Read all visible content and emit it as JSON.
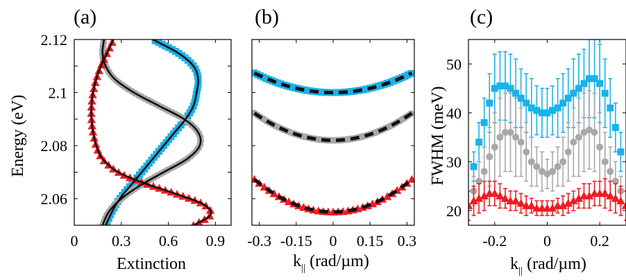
{
  "colors": {
    "cyan": "#1ab2e8",
    "gray": "#a8a8a8",
    "red": "#ee1c24",
    "fit": "#111111"
  },
  "chart_data": [
    {
      "panel": "(a)",
      "type": "line",
      "xlabel": "Extinction",
      "ylabel": "Energy (eV)",
      "xlim": [
        0,
        1.0
      ],
      "ylim": [
        2.05,
        2.12
      ],
      "xticks": [
        "0",
        "0.3",
        "0.6",
        "0.9"
      ],
      "yticks": [
        "2.06",
        "2.08",
        "2.1",
        "2.12"
      ],
      "series": [
        {
          "color": "cyan",
          "marker": "square",
          "points": [
            [
              0.2,
              2.05
            ],
            [
              0.24,
              2.055
            ],
            [
              0.29,
              2.06
            ],
            [
              0.36,
              2.065
            ],
            [
              0.43,
              2.07
            ],
            [
              0.5,
              2.075
            ],
            [
              0.57,
              2.08
            ],
            [
              0.64,
              2.085
            ],
            [
              0.71,
              2.09
            ],
            [
              0.76,
              2.095
            ],
            [
              0.78,
              2.1
            ],
            [
              0.79,
              2.105
            ],
            [
              0.76,
              2.11
            ],
            [
              0.66,
              2.115
            ],
            [
              0.5,
              2.12
            ]
          ]
        },
        {
          "color": "gray",
          "marker": "circle",
          "points": [
            [
              0.18,
              2.05
            ],
            [
              0.22,
              2.055
            ],
            [
              0.3,
              2.06
            ],
            [
              0.42,
              2.065
            ],
            [
              0.57,
              2.07
            ],
            [
              0.72,
              2.075
            ],
            [
              0.8,
              2.08
            ],
            [
              0.79,
              2.085
            ],
            [
              0.7,
              2.09
            ],
            [
              0.54,
              2.095
            ],
            [
              0.38,
              2.1
            ],
            [
              0.26,
              2.105
            ],
            [
              0.2,
              2.11
            ],
            [
              0.18,
              2.115
            ],
            [
              0.19,
              2.12
            ]
          ]
        },
        {
          "color": "red",
          "marker": "triangle",
          "points": [
            [
              0.76,
              2.05
            ],
            [
              0.87,
              2.054
            ],
            [
              0.82,
              2.058
            ],
            [
              0.64,
              2.062
            ],
            [
              0.44,
              2.066
            ],
            [
              0.28,
              2.07
            ],
            [
              0.18,
              2.075
            ],
            [
              0.14,
              2.08
            ],
            [
              0.12,
              2.085
            ],
            [
              0.11,
              2.09
            ],
            [
              0.11,
              2.095
            ],
            [
              0.12,
              2.1
            ],
            [
              0.14,
              2.105
            ],
            [
              0.17,
              2.11
            ],
            [
              0.21,
              2.115
            ],
            [
              0.25,
              2.12
            ]
          ]
        }
      ]
    },
    {
      "panel": "(b)",
      "type": "line",
      "xlabel": "k",
      "xlabel_sub": "||",
      "xlabel_unit": "(rad/µm)",
      "xlim": [
        -0.33,
        0.33
      ],
      "ylim": [
        2.05,
        2.12
      ],
      "xticks": [
        "-0.3",
        "-0.15",
        "0",
        "0.15",
        "0.3"
      ],
      "xtick_values": [
        -0.3,
        -0.15,
        0,
        0.15,
        0.3
      ],
      "series": [
        {
          "color": "cyan",
          "marker": "square",
          "e0": 2.1,
          "curv": 0.072
        },
        {
          "color": "gray",
          "marker": "circle",
          "e0": 2.082,
          "curv": 0.1
        },
        {
          "color": "red",
          "marker": "triangle",
          "e0": 2.055,
          "curv": 0.12
        }
      ]
    },
    {
      "panel": "(c)",
      "type": "scatter",
      "xlabel": "k",
      "xlabel_sub": "||",
      "xlabel_unit": "(rad/µm)",
      "ylabel": "FWHM (meV)",
      "xlim": [
        -0.3,
        0.3
      ],
      "ylim": [
        17,
        55
      ],
      "xticks": [
        "-0.2",
        "0",
        "0.2"
      ],
      "xtick_values": [
        -0.2,
        0,
        0.2
      ],
      "yticks": [
        "20",
        "30",
        "40",
        "50"
      ],
      "ytick_values": [
        20,
        30,
        40,
        50
      ],
      "series": [
        {
          "color": "cyan",
          "marker": "square",
          "x": [
            -0.28,
            -0.26,
            -0.24,
            -0.22,
            -0.2,
            -0.18,
            -0.16,
            -0.14,
            -0.12,
            -0.1,
            -0.08,
            -0.06,
            -0.04,
            -0.02,
            0,
            0.02,
            0.04,
            0.06,
            0.08,
            0.1,
            0.12,
            0.14,
            0.16,
            0.18,
            0.2,
            0.22,
            0.24,
            0.26,
            0.28
          ],
          "y": [
            29,
            34,
            38,
            42,
            45,
            45.5,
            45.5,
            45,
            44,
            43,
            42,
            41,
            40.5,
            40,
            40,
            40.5,
            41,
            42,
            43,
            44,
            45,
            46,
            47,
            47,
            46,
            44,
            41,
            37,
            32
          ],
          "err": [
            3,
            4,
            5,
            6,
            7,
            7,
            7,
            7,
            7,
            6,
            6,
            6,
            5,
            5,
            5,
            5,
            6,
            6,
            6,
            7,
            7,
            7,
            8,
            8,
            8,
            7,
            6,
            5,
            4
          ]
        },
        {
          "color": "gray",
          "marker": "circle",
          "x": [
            -0.28,
            -0.26,
            -0.24,
            -0.22,
            -0.2,
            -0.18,
            -0.16,
            -0.14,
            -0.12,
            -0.1,
            -0.08,
            -0.06,
            -0.04,
            -0.02,
            0,
            0.02,
            0.04,
            0.06,
            0.08,
            0.1,
            0.12,
            0.14,
            0.16,
            0.18,
            0.2,
            0.22,
            0.24,
            0.26,
            0.28
          ],
          "y": [
            24,
            26,
            28,
            31,
            33,
            35,
            36,
            36,
            35,
            34,
            32,
            30,
            29,
            28,
            27.5,
            28,
            29,
            30,
            32,
            34,
            35,
            36,
            36.5,
            36,
            33,
            30,
            28,
            26,
            24
          ],
          "err": [
            3,
            4,
            5,
            6,
            7,
            8,
            8,
            8,
            8,
            7,
            6,
            5,
            4,
            4,
            3,
            4,
            4,
            5,
            6,
            7,
            8,
            8,
            8,
            8,
            7,
            6,
            5,
            4,
            3
          ]
        },
        {
          "color": "red",
          "marker": "triangle",
          "x": [
            -0.3,
            -0.28,
            -0.26,
            -0.24,
            -0.22,
            -0.2,
            -0.18,
            -0.16,
            -0.14,
            -0.12,
            -0.1,
            -0.08,
            -0.06,
            -0.04,
            -0.02,
            0,
            0.02,
            0.04,
            0.06,
            0.08,
            0.1,
            0.12,
            0.14,
            0.16,
            0.18,
            0.2,
            0.22,
            0.24,
            0.26,
            0.28,
            0.3
          ],
          "y": [
            21,
            22,
            22.5,
            23,
            23.5,
            23.5,
            23,
            22.5,
            22,
            22,
            21.5,
            21,
            21,
            20.5,
            20.5,
            20.5,
            20.5,
            21,
            21,
            21.5,
            22,
            22.5,
            23,
            23,
            23.5,
            23.5,
            23.5,
            23,
            22.5,
            22,
            21
          ],
          "err": [
            3,
            3,
            3,
            3,
            2.5,
            2.5,
            2.5,
            2,
            2,
            2,
            2,
            2,
            1.5,
            1.5,
            1.5,
            1.5,
            1.5,
            1.5,
            2,
            2,
            2,
            2,
            2.5,
            2.5,
            2.5,
            2.5,
            3,
            3,
            3,
            3,
            3
          ]
        }
      ]
    }
  ]
}
